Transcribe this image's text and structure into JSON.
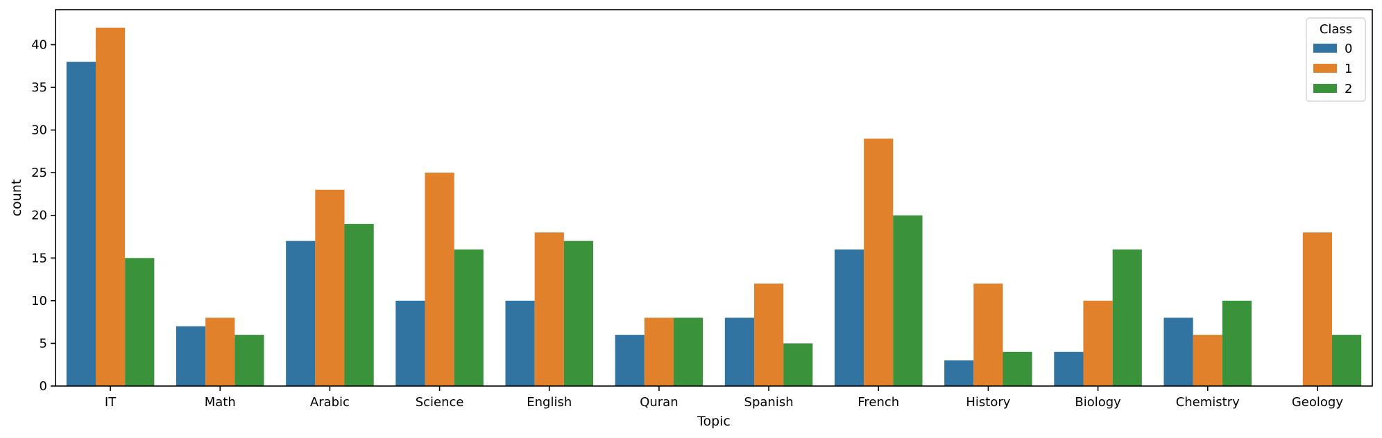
{
  "chart_data": {
    "type": "bar",
    "xlabel": "Topic",
    "ylabel": "count",
    "ylim": [
      0,
      44.1
    ],
    "yticks": [
      0,
      5,
      10,
      15,
      20,
      25,
      30,
      35,
      40
    ],
    "grid": false,
    "categories": [
      "IT",
      "Math",
      "Arabic",
      "Science",
      "English",
      "Quran",
      "Spanish",
      "French",
      "History",
      "Biology",
      "Chemistry",
      "Geology"
    ],
    "series": [
      {
        "name": "0",
        "color": "#3274a1",
        "values": [
          38,
          7,
          17,
          10,
          10,
          6,
          8,
          16,
          3,
          4,
          8,
          0
        ]
      },
      {
        "name": "1",
        "color": "#e1812c",
        "values": [
          42,
          8,
          23,
          25,
          18,
          8,
          12,
          29,
          12,
          10,
          6,
          18
        ]
      },
      {
        "name": "2",
        "color": "#3a923a",
        "values": [
          15,
          6,
          19,
          16,
          17,
          8,
          5,
          20,
          4,
          16,
          10,
          6
        ]
      }
    ],
    "legend": {
      "title": "Class",
      "position": "top-right"
    }
  }
}
